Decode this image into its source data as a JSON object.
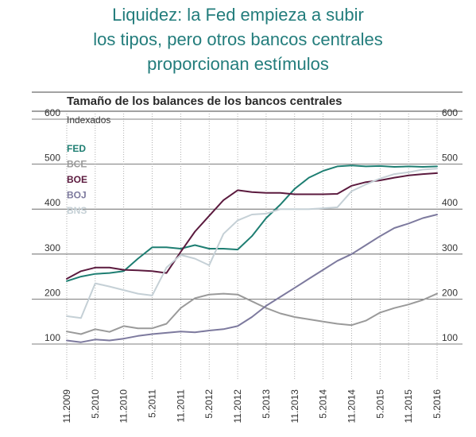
{
  "headline": [
    "Liquidez: la Fed empieza a subir",
    "los tipos, pero otros bancos centrales",
    "proporcionan estímulos"
  ],
  "colors": {
    "headline": "#237d7c",
    "FED": "#1e7e72",
    "BCE": "#9a9a9a",
    "BOE": "#5b1a3e",
    "BOJ": "#7d7a9e",
    "BNS": "#c5d0d6"
  },
  "chart_data": {
    "type": "line",
    "title": "Tamaño de los balances de los bancos centrales",
    "ylabel": "Indexados",
    "ylim": [
      100,
      600
    ],
    "yticks": [
      100,
      200,
      300,
      400,
      500,
      600
    ],
    "x_tick_labels": [
      "11.2009",
      "5.2010",
      "11.2010",
      "5.2011",
      "11.2011",
      "5.2012",
      "11.2012",
      "5.2013",
      "11.2013",
      "5.2014",
      "11.2014",
      "5.2015",
      "11.2015",
      "5.2016"
    ],
    "x_range": [
      "11.2009",
      "5.2016"
    ],
    "grid": true,
    "legend": "left",
    "series": [
      {
        "name": "FED",
        "x": [
          "11.2009",
          "2.2010",
          "5.2010",
          "8.2010",
          "11.2010",
          "2.2011",
          "5.2011",
          "8.2011",
          "11.2011",
          "2.2012",
          "5.2012",
          "8.2012",
          "11.2012",
          "2.2013",
          "5.2013",
          "8.2013",
          "11.2013",
          "2.2014",
          "5.2014",
          "8.2014",
          "11.2014",
          "2.2015",
          "5.2015",
          "8.2015",
          "11.2015",
          "2.2016",
          "5.2016"
        ],
        "values": [
          240,
          250,
          256,
          258,
          262,
          290,
          315,
          315,
          312,
          320,
          312,
          312,
          310,
          340,
          380,
          410,
          445,
          470,
          485,
          495,
          497,
          495,
          496,
          494,
          495,
          494,
          495
        ]
      },
      {
        "name": "BCE",
        "x": [
          "11.2009",
          "2.2010",
          "5.2010",
          "8.2010",
          "11.2010",
          "2.2011",
          "5.2011",
          "8.2011",
          "11.2011",
          "2.2012",
          "5.2012",
          "8.2012",
          "11.2012",
          "2.2013",
          "5.2013",
          "8.2013",
          "11.2013",
          "2.2014",
          "5.2014",
          "8.2014",
          "11.2014",
          "2.2015",
          "5.2015",
          "8.2015",
          "11.2015",
          "2.2016",
          "5.2016"
        ],
        "values": [
          128,
          122,
          133,
          127,
          140,
          135,
          135,
          145,
          180,
          202,
          210,
          212,
          210,
          195,
          180,
          168,
          160,
          155,
          150,
          145,
          142,
          152,
          170,
          180,
          188,
          198,
          212
        ]
      },
      {
        "name": "BOE",
        "x": [
          "11.2009",
          "2.2010",
          "5.2010",
          "8.2010",
          "11.2010",
          "2.2011",
          "5.2011",
          "8.2011",
          "11.2011",
          "2.2012",
          "5.2012",
          "8.2012",
          "11.2012",
          "2.2013",
          "5.2013",
          "8.2013",
          "11.2013",
          "2.2014",
          "5.2014",
          "8.2014",
          "11.2014",
          "2.2015",
          "5.2015",
          "8.2015",
          "11.2015",
          "2.2016",
          "5.2016"
        ],
        "values": [
          245,
          262,
          270,
          270,
          265,
          264,
          262,
          258,
          305,
          350,
          385,
          420,
          442,
          438,
          436,
          436,
          433,
          433,
          433,
          434,
          452,
          460,
          464,
          470,
          475,
          478,
          480
        ]
      },
      {
        "name": "BOJ",
        "x": [
          "11.2009",
          "2.2010",
          "5.2010",
          "8.2010",
          "11.2010",
          "2.2011",
          "5.2011",
          "8.2011",
          "11.2011",
          "2.2012",
          "5.2012",
          "8.2012",
          "11.2012",
          "2.2013",
          "5.2013",
          "8.2013",
          "11.2013",
          "2.2014",
          "5.2014",
          "8.2014",
          "11.2014",
          "2.2015",
          "5.2015",
          "8.2015",
          "11.2015",
          "2.2016",
          "5.2016"
        ],
        "values": [
          108,
          104,
          110,
          108,
          112,
          118,
          122,
          125,
          128,
          126,
          130,
          133,
          140,
          160,
          185,
          205,
          225,
          245,
          265,
          285,
          300,
          320,
          340,
          358,
          368,
          380,
          388
        ]
      },
      {
        "name": "BNS",
        "x": [
          "11.2009",
          "2.2010",
          "5.2010",
          "8.2010",
          "11.2010",
          "2.2011",
          "5.2011",
          "8.2011",
          "11.2011",
          "2.2012",
          "5.2012",
          "8.2012",
          "11.2012",
          "2.2013",
          "5.2013",
          "8.2013",
          "11.2013",
          "2.2014",
          "5.2014",
          "8.2014",
          "11.2014",
          "2.2015",
          "5.2015",
          "8.2015",
          "11.2015",
          "2.2016",
          "5.2016"
        ],
        "values": [
          162,
          158,
          235,
          228,
          220,
          212,
          208,
          270,
          298,
          290,
          275,
          345,
          375,
          388,
          390,
          400,
          400,
          400,
          402,
          404,
          440,
          455,
          468,
          478,
          482,
          488,
          490
        ]
      }
    ]
  }
}
